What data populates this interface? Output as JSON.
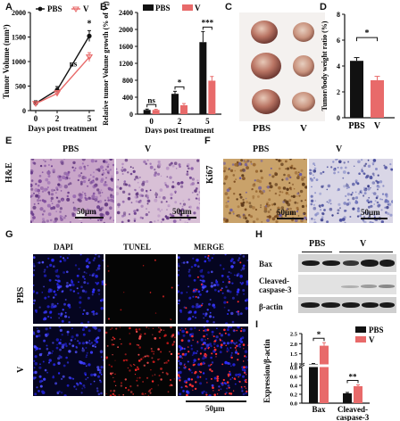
{
  "panels": {
    "A": "A",
    "B": "B",
    "C": "C",
    "D": "D",
    "E": "E",
    "F": "F",
    "G": "G",
    "H": "H",
    "I": "I"
  },
  "colors": {
    "pbs": "#111111",
    "v": "#e86a6a"
  },
  "panel_a": {
    "chart_data": {
      "type": "line",
      "x": [
        0,
        2,
        5
      ],
      "xticks": [
        "0",
        "2",
        "5"
      ],
      "series": [
        {
          "name": "PBS",
          "values": [
            150,
            420,
            1520
          ],
          "err": [
            50,
            70,
            110
          ]
        },
        {
          "name": "V",
          "values": [
            140,
            350,
            1090
          ],
          "err": [
            40,
            60,
            90
          ]
        }
      ],
      "ylabel": "Tumor Volume (mm³)",
      "xlabel": "Days post treatment",
      "ylim": [
        0,
        2000
      ],
      "yticks": [
        "0",
        "500",
        "1000",
        "1500",
        "2000"
      ],
      "annotations": [
        "ns",
        "*"
      ]
    }
  },
  "panel_b": {
    "chart_data": {
      "type": "bar",
      "categories": [
        "0",
        "2",
        "5"
      ],
      "series": [
        {
          "name": "PBS",
          "values": [
            100,
            480,
            1700
          ],
          "err": [
            20,
            60,
            250
          ]
        },
        {
          "name": "V",
          "values": [
            100,
            210,
            790
          ],
          "err": [
            15,
            40,
            100
          ]
        }
      ],
      "ylabel": "Relative tumor Volume growth (% of V₀)",
      "xlabel": "Days post treatment",
      "ylim": [
        0,
        2400
      ],
      "yticks": [
        "0",
        "400",
        "800",
        "1200",
        "1600",
        "2000",
        "2400"
      ],
      "annotations": [
        "ns",
        "*",
        "***"
      ]
    }
  },
  "panel_c": {
    "labels": [
      "PBS",
      "V"
    ]
  },
  "panel_d": {
    "chart_data": {
      "type": "bar",
      "categories": [
        "PBS",
        "V"
      ],
      "values": [
        4.4,
        2.9
      ],
      "err": [
        0.25,
        0.3
      ],
      "ylabel": "Tumor/body weight ratio (%)",
      "ylim": [
        0,
        8
      ],
      "yticks": [
        "0",
        "2",
        "4",
        "6",
        "8"
      ],
      "annotations": [
        "*"
      ]
    }
  },
  "panel_e": {
    "row_label": "H&E",
    "cols": [
      "PBS",
      "V"
    ],
    "scale": "50μm"
  },
  "panel_f": {
    "row_label": "Ki67",
    "cols": [
      "PBS",
      "V"
    ],
    "scale": "50μm"
  },
  "panel_g": {
    "cols": [
      "DAPI",
      "TUNEL",
      "MERGE"
    ],
    "rows": [
      "PBS",
      "V"
    ],
    "scale": "50μm"
  },
  "panel_h": {
    "groups": [
      "PBS",
      "V"
    ],
    "rows": [
      "Bax",
      "Cleaved-\ncaspase-3",
      "β-actin"
    ]
  },
  "panel_i": {
    "chart_data": {
      "type": "bar",
      "categories": [
        "Bax",
        "Cleaved-\ncaspase-3"
      ],
      "series": [
        {
          "name": "PBS",
          "values": [
            1.0,
            0.22
          ],
          "err": [
            0.02,
            0.02
          ]
        },
        {
          "name": "V",
          "values": [
            1.9,
            0.38
          ],
          "err": [
            0.15,
            0.03
          ]
        }
      ],
      "ylabel": "Expression/β-actin",
      "ylim": [
        0,
        2.5
      ],
      "yticks": [
        "0.0",
        "0.2",
        "0.4",
        "0.6",
        "0.8",
        "1.0",
        "1.5",
        "2.0",
        "2.5"
      ],
      "broken_axis": true,
      "annotations": [
        "*",
        "**"
      ]
    }
  }
}
